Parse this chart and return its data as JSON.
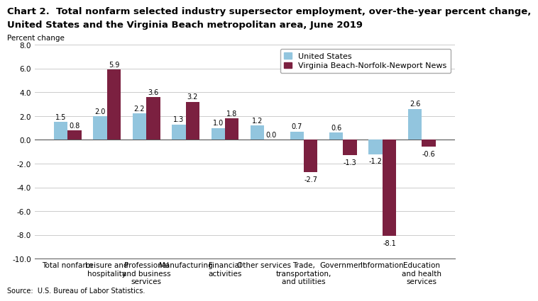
{
  "title_line1": "Chart 2.  Total nonfarm selected industry supersector employment, over-the-year percent change,",
  "title_line2": "United States and the Virginia Beach metropolitan area, June 2019",
  "ylabel": "Percent change",
  "source": "Source:  U.S. Bureau of Labor Statistics.",
  "categories": [
    "Total nonfarm",
    "Leisure and\nhospitality",
    "Professional\nand business\nservices",
    "Manufacturing",
    "Financial\nactivities",
    "Other services",
    "Trade,\ntransportation,\nand utilities",
    "Government",
    "Information",
    "Education\nand health\nservices"
  ],
  "us_values": [
    1.5,
    2.0,
    2.2,
    1.3,
    1.0,
    1.2,
    0.7,
    0.6,
    -1.2,
    2.6
  ],
  "va_values": [
    0.8,
    5.9,
    3.6,
    3.2,
    1.8,
    0.0,
    -2.7,
    -1.3,
    -8.1,
    -0.6
  ],
  "us_color": "#92C5DE",
  "va_color": "#7B2040",
  "ylim": [
    -10.0,
    8.0
  ],
  "yticks": [
    -10.0,
    -8.0,
    -6.0,
    -4.0,
    -2.0,
    0.0,
    2.0,
    4.0,
    6.0,
    8.0
  ],
  "legend_us": "United States",
  "legend_va": "Virginia Beach-Norfolk-Newport News",
  "bar_width": 0.35,
  "title_fontsize": 9.5,
  "tick_fontsize": 7.5,
  "label_fontsize": 7,
  "legend_fontsize": 8,
  "ylabel_fontsize": 7.5
}
